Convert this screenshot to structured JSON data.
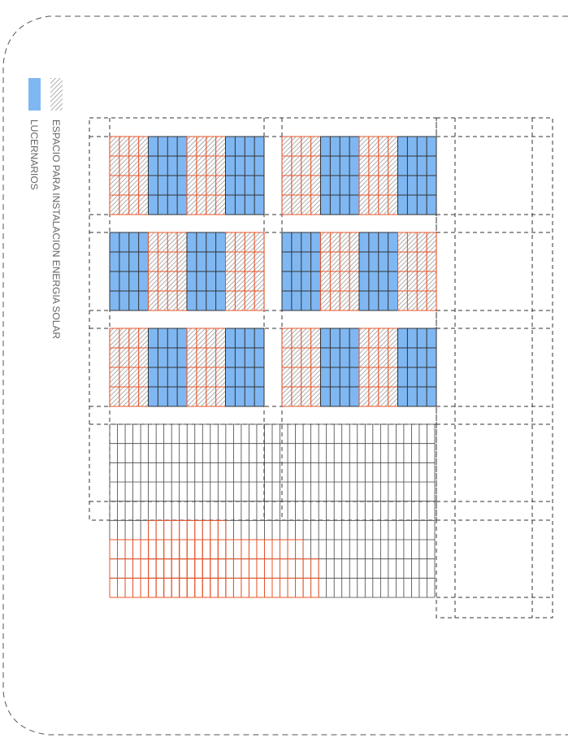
{
  "legend": {
    "solar_label": "ESPACIO PARA INSTALACION ENERGIA SOLAR",
    "skylight_label": "LUCERNARIOS"
  },
  "colors": {
    "background": "#ffffff",
    "outline": "#555555",
    "grid": "#333333",
    "skylight_fill": "#7fb7f2",
    "solar_stroke": "#e8542a",
    "hatch": "#999999",
    "label": "#666666"
  },
  "panel_layout": {
    "rows": 3,
    "columns": 2,
    "pattern_odd_rows": [
      "solar",
      "skylight",
      "solar",
      "skylight"
    ],
    "pattern_even_rows": [
      "skylight",
      "solar",
      "skylight",
      "solar"
    ]
  }
}
